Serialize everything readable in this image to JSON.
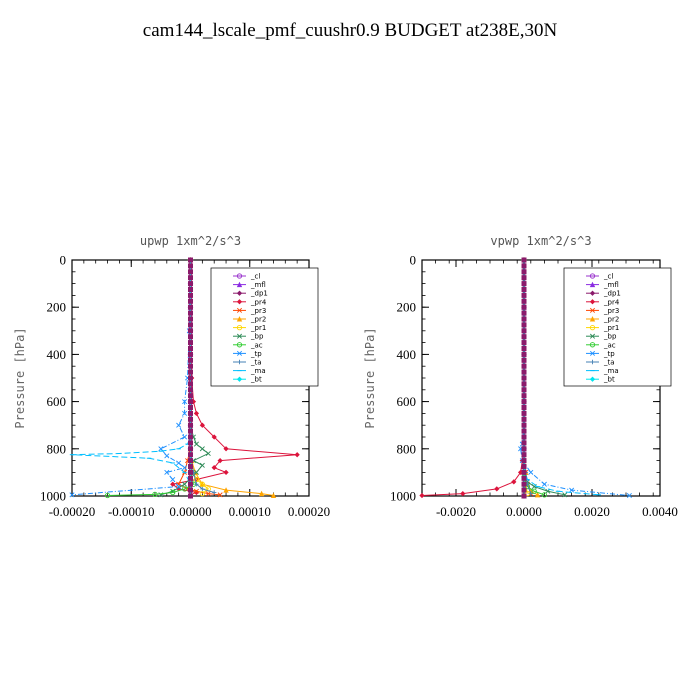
{
  "title": "cam144_lscale_pmf_cuushr0.9  BUDGET at238E,30N",
  "chart_data": [
    {
      "type": "line",
      "title": "upwp   1xm^2/s^3",
      "ylabel": "Pressure [hPa]",
      "xlabel": "",
      "xlim": [
        -0.0002,
        0.0002
      ],
      "ylim": [
        1000,
        0
      ],
      "xticks": [
        -0.0002,
        -0.0001,
        0.0,
        0.0001,
        0.0002
      ],
      "xtick_labels": [
        "-0.00020",
        "-0.00010",
        "0.00000",
        "0.00010",
        "0.00020"
      ],
      "yticks": [
        0,
        200,
        400,
        600,
        800,
        1000
      ],
      "ytick_labels": [
        "0",
        "200",
        "400",
        "600",
        "800",
        "1000"
      ],
      "legend_position": "top-right",
      "series": [
        {
          "name": "_cl",
          "color": "#9933cc",
          "x": [
            0,
            0,
            0,
            0,
            0,
            0,
            0,
            0,
            0,
            0,
            0
          ],
          "y": [
            0,
            100,
            200,
            300,
            400,
            500,
            600,
            700,
            800,
            900,
            1000
          ]
        },
        {
          "name": "_mfl",
          "color": "#8a2be2",
          "x": [
            0,
            0,
            0,
            0,
            0,
            0,
            0,
            0,
            0,
            0,
            0
          ],
          "y": [
            0,
            100,
            200,
            300,
            400,
            500,
            600,
            700,
            800,
            900,
            1000
          ]
        },
        {
          "name": "_dp1",
          "color": "#8b1a6b",
          "x": [
            0,
            0,
            0,
            0,
            0,
            0,
            0,
            0,
            0,
            0,
            0
          ],
          "y": [
            0,
            100,
            200,
            300,
            400,
            500,
            600,
            700,
            800,
            900,
            1000
          ]
        },
        {
          "name": "_pr4",
          "color": "#dc143c",
          "x": [
            0,
            0,
            0,
            2e-06,
            5e-06,
            1e-05,
            2e-05,
            4e-05,
            6e-05,
            0.00018,
            5e-05,
            4e-05,
            6e-05,
            1e-05,
            -3e-05,
            -2e-05,
            1e-05,
            0.0
          ],
          "y": [
            0,
            200,
            400,
            500,
            600,
            650,
            700,
            750,
            800,
            825,
            850,
            880,
            900,
            930,
            950,
            970,
            985,
            995
          ]
        },
        {
          "name": "_pr3",
          "color": "#ff4500",
          "x": [
            0,
            0,
            -5e-06,
            -1e-05,
            -2e-05,
            -5e-06,
            1e-05,
            3e-05,
            5e-05
          ],
          "y": [
            0,
            800,
            850,
            900,
            950,
            970,
            980,
            990,
            995
          ]
        },
        {
          "name": "_pr2",
          "color": "#ffa500",
          "x": [
            0,
            0,
            2e-06,
            8e-06,
            2e-05,
            6e-05,
            0.00012,
            0.00014
          ],
          "y": [
            0,
            800,
            850,
            900,
            950,
            975,
            990,
            998
          ]
        },
        {
          "name": "_pr1",
          "color": "#ffd700",
          "x": [
            0,
            0,
            5e-06,
            1e-05,
            2e-05,
            3e-05,
            2e-05
          ],
          "y": [
            0,
            850,
            900,
            930,
            950,
            970,
            990
          ]
        },
        {
          "name": "_bp",
          "color": "#2e8b57",
          "x": [
            0,
            0,
            5e-06,
            1e-05,
            2e-05,
            3e-05,
            5e-06,
            2e-05,
            1e-05,
            -1e-05,
            -3e-05,
            -5e-05
          ],
          "y": [
            0,
            700,
            750,
            780,
            800,
            820,
            850,
            870,
            900,
            950,
            980,
            995
          ]
        },
        {
          "name": "_ac",
          "color": "#32cd32",
          "x": [
            0,
            0,
            5e-06,
            -1e-05,
            -3e-05,
            -6e-05,
            -0.00014
          ],
          "y": [
            0,
            900,
            950,
            970,
            985,
            993,
            998
          ]
        },
        {
          "name": "_tp",
          "color": "#1e90ff",
          "x": [
            0,
            -2e-06,
            -5e-06,
            -1e-05,
            -1e-05,
            -2e-05,
            -1e-05,
            -5e-05,
            -4e-05,
            -2e-05,
            -1e-05,
            -4e-05,
            -3e-05,
            -2e-05,
            -0.0002
          ],
          "y": [
            0,
            300,
            500,
            600,
            650,
            700,
            750,
            800,
            830,
            860,
            880,
            900,
            930,
            960,
            995
          ]
        },
        {
          "name": "_ta",
          "color": "#4682b4",
          "x": [
            0,
            0,
            2e-06,
            5e-06,
            1e-05,
            2e-05,
            4e-05
          ],
          "y": [
            0,
            800,
            850,
            900,
            950,
            970,
            985
          ]
        },
        {
          "name": "_ma",
          "color": "#00bfff",
          "x": [
            0,
            0,
            -5e-06,
            -2e-05,
            -5e-05,
            -0.00012,
            -0.0002,
            -7e-05,
            -3e-05,
            -1e-05,
            0
          ],
          "y": [
            0,
            750,
            780,
            800,
            810,
            820,
            825,
            840,
            860,
            900,
            950
          ]
        },
        {
          "name": "_bt",
          "color": "#00e5ee",
          "x": [
            0,
            0,
            0,
            0,
            0,
            0
          ],
          "y": [
            0,
            200,
            400,
            600,
            800,
            1000
          ]
        }
      ]
    },
    {
      "type": "line",
      "title": "vpwp   1xm^2/s^3",
      "ylabel": "Pressure [hPa]",
      "xlabel": "",
      "xlim": [
        -0.003,
        0.004
      ],
      "ylim": [
        1000,
        0
      ],
      "xticks": [
        -0.002,
        0.0,
        0.002,
        0.004
      ],
      "xtick_labels": [
        "-0.0020",
        "0.0000",
        "0.0020",
        "0.0040"
      ],
      "yticks": [
        0,
        200,
        400,
        600,
        800,
        1000
      ],
      "ytick_labels": [
        "0",
        "200",
        "400",
        "600",
        "800",
        "1000"
      ],
      "legend_position": "top-right",
      "series": [
        {
          "name": "_cl",
          "color": "#9933cc",
          "x": [
            0,
            0,
            0,
            0,
            0,
            0
          ],
          "y": [
            0,
            200,
            400,
            600,
            800,
            1000
          ]
        },
        {
          "name": "_mfl",
          "color": "#8a2be2",
          "x": [
            0,
            0,
            0,
            0,
            0,
            0
          ],
          "y": [
            0,
            200,
            400,
            600,
            800,
            1000
          ]
        },
        {
          "name": "_dp1",
          "color": "#8b1a6b",
          "x": [
            0,
            0,
            0,
            0,
            0,
            0,
            0,
            0,
            0,
            0,
            0
          ],
          "y": [
            0,
            100,
            200,
            300,
            400,
            500,
            600,
            700,
            800,
            900,
            1000
          ]
        },
        {
          "name": "_pr4",
          "color": "#dc143c",
          "x": [
            0,
            0,
            -5e-05,
            -0.0001,
            -0.0003,
            -0.0008,
            -0.0018,
            -0.003
          ],
          "y": [
            0,
            800,
            850,
            900,
            940,
            970,
            990,
            998
          ]
        },
        {
          "name": "_pr3",
          "color": "#ff4500",
          "x": [
            0,
            0,
            5e-05,
            0.0001,
            0.0002
          ],
          "y": [
            0,
            850,
            900,
            950,
            990
          ]
        },
        {
          "name": "_pr2",
          "color": "#ffa500",
          "x": [
            0,
            0,
            5e-05,
            0.0001,
            0.0002,
            0.0004
          ],
          "y": [
            0,
            850,
            900,
            950,
            980,
            995
          ]
        },
        {
          "name": "_pr1",
          "color": "#ffd700",
          "x": [
            0,
            0,
            5e-05,
            0.0001
          ],
          "y": [
            0,
            900,
            950,
            990
          ]
        },
        {
          "name": "_bp",
          "color": "#2e8b57",
          "x": [
            0,
            0,
            0.0001,
            0.0003,
            0.0007,
            0.0012
          ],
          "y": [
            0,
            900,
            940,
            960,
            980,
            995
          ]
        },
        {
          "name": "_ac",
          "color": "#32cd32",
          "x": [
            0,
            0,
            0.0001,
            0.0003,
            0.0006
          ],
          "y": [
            0,
            920,
            960,
            980,
            995
          ]
        },
        {
          "name": "_tp",
          "color": "#1e90ff",
          "x": [
            0,
            0,
            -5e-05,
            -0.0001,
            -5e-05,
            0.0002,
            0.0006,
            0.0014,
            0.0031
          ],
          "y": [
            0,
            700,
            780,
            800,
            850,
            900,
            950,
            975,
            998
          ]
        },
        {
          "name": "_ta",
          "color": "#4682b4",
          "x": [
            0,
            0,
            5e-05,
            0.0001,
            0.0002
          ],
          "y": [
            0,
            850,
            900,
            950,
            990
          ]
        },
        {
          "name": "_ma",
          "color": "#00bfff",
          "x": [
            0,
            0,
            0.0001,
            0.0004,
            0.001,
            0.0022
          ],
          "y": [
            0,
            880,
            930,
            960,
            980,
            995
          ]
        },
        {
          "name": "_bt",
          "color": "#00e5ee",
          "x": [
            0,
            0,
            0,
            0,
            0,
            0
          ],
          "y": [
            0,
            200,
            400,
            600,
            800,
            1000
          ]
        }
      ]
    }
  ]
}
